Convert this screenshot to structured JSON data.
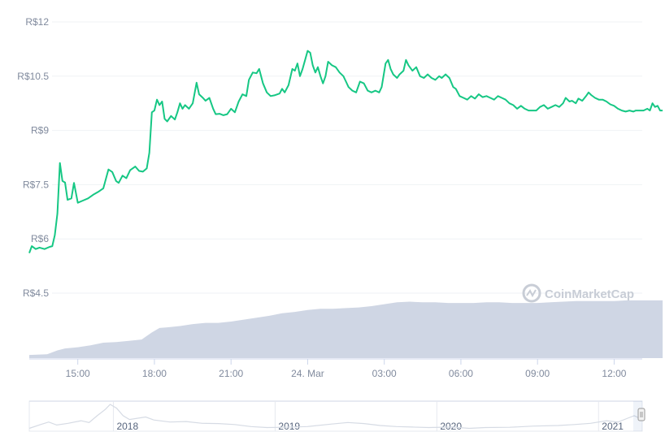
{
  "chart_data": {
    "type": "line",
    "currency_prefix": "R$",
    "y_ticks": [
      "R$12",
      "R$10.5",
      "R$9",
      "R$7.5",
      "R$6",
      "R$4.5"
    ],
    "y_tick_values": [
      12,
      10.5,
      9,
      7.5,
      6,
      4.5
    ],
    "ylim": [
      4.5,
      12
    ],
    "x_ticks": [
      "15:00",
      "18:00",
      "21:00",
      "24. Mar",
      "03:00",
      "06:00",
      "09:00",
      "12:00"
    ],
    "x_tick_hours": [
      15,
      18,
      21,
      24,
      27,
      30,
      33,
      36
    ],
    "xlim_hours": [
      13.1,
      37.1
    ],
    "grid": true,
    "line_color": "#16c784",
    "volume_color": "#cfd6e4",
    "price_series": [
      [
        13.1,
        5.61
      ],
      [
        13.2,
        5.8
      ],
      [
        13.35,
        5.72
      ],
      [
        13.5,
        5.76
      ],
      [
        13.7,
        5.72
      ],
      [
        13.9,
        5.78
      ],
      [
        14.0,
        5.8
      ],
      [
        14.1,
        6.1
      ],
      [
        14.2,
        6.7
      ],
      [
        14.3,
        8.1
      ],
      [
        14.4,
        7.6
      ],
      [
        14.5,
        7.56
      ],
      [
        14.6,
        7.08
      ],
      [
        14.75,
        7.12
      ],
      [
        14.85,
        7.55
      ],
      [
        15.0,
        7.0
      ],
      [
        15.2,
        7.06
      ],
      [
        15.4,
        7.12
      ],
      [
        15.6,
        7.22
      ],
      [
        15.8,
        7.3
      ],
      [
        16.0,
        7.4
      ],
      [
        16.2,
        7.92
      ],
      [
        16.35,
        7.85
      ],
      [
        16.5,
        7.6
      ],
      [
        16.6,
        7.55
      ],
      [
        16.75,
        7.75
      ],
      [
        16.9,
        7.68
      ],
      [
        17.05,
        7.9
      ],
      [
        17.25,
        8.0
      ],
      [
        17.4,
        7.88
      ],
      [
        17.55,
        7.86
      ],
      [
        17.7,
        7.95
      ],
      [
        17.8,
        8.38
      ],
      [
        17.9,
        9.5
      ],
      [
        18.0,
        9.55
      ],
      [
        18.1,
        9.85
      ],
      [
        18.2,
        9.7
      ],
      [
        18.3,
        9.8
      ],
      [
        18.4,
        9.32
      ],
      [
        18.5,
        9.25
      ],
      [
        18.65,
        9.4
      ],
      [
        18.8,
        9.3
      ],
      [
        18.9,
        9.5
      ],
      [
        19.0,
        9.75
      ],
      [
        19.1,
        9.6
      ],
      [
        19.2,
        9.7
      ],
      [
        19.35,
        9.6
      ],
      [
        19.5,
        9.75
      ],
      [
        19.65,
        10.32
      ],
      [
        19.75,
        10.0
      ],
      [
        19.9,
        9.9
      ],
      [
        20.0,
        9.82
      ],
      [
        20.15,
        9.9
      ],
      [
        20.3,
        9.6
      ],
      [
        20.4,
        9.45
      ],
      [
        20.55,
        9.46
      ],
      [
        20.7,
        9.42
      ],
      [
        20.85,
        9.45
      ],
      [
        21.0,
        9.6
      ],
      [
        21.15,
        9.5
      ],
      [
        21.3,
        9.8
      ],
      [
        21.45,
        10.0
      ],
      [
        21.6,
        9.95
      ],
      [
        21.7,
        10.4
      ],
      [
        21.85,
        10.6
      ],
      [
        22.0,
        10.58
      ],
      [
        22.1,
        10.7
      ],
      [
        22.25,
        10.3
      ],
      [
        22.4,
        10.05
      ],
      [
        22.55,
        9.95
      ],
      [
        22.7,
        9.97
      ],
      [
        22.9,
        10.02
      ],
      [
        23.0,
        10.15
      ],
      [
        23.1,
        10.05
      ],
      [
        23.25,
        10.25
      ],
      [
        23.4,
        10.7
      ],
      [
        23.5,
        10.65
      ],
      [
        23.6,
        10.85
      ],
      [
        23.7,
        10.5
      ],
      [
        23.8,
        10.7
      ],
      [
        23.9,
        10.95
      ],
      [
        24.0,
        11.2
      ],
      [
        24.1,
        11.15
      ],
      [
        24.2,
        10.8
      ],
      [
        24.3,
        10.6
      ],
      [
        24.4,
        10.75
      ],
      [
        24.5,
        10.5
      ],
      [
        24.6,
        10.3
      ],
      [
        24.7,
        10.5
      ],
      [
        24.8,
        10.9
      ],
      [
        24.95,
        10.8
      ],
      [
        25.1,
        10.75
      ],
      [
        25.25,
        10.6
      ],
      [
        25.4,
        10.5
      ],
      [
        25.5,
        10.35
      ],
      [
        25.6,
        10.2
      ],
      [
        25.75,
        10.1
      ],
      [
        25.9,
        10.05
      ],
      [
        26.05,
        10.35
      ],
      [
        26.2,
        10.3
      ],
      [
        26.35,
        10.1
      ],
      [
        26.5,
        10.05
      ],
      [
        26.65,
        10.1
      ],
      [
        26.8,
        10.05
      ],
      [
        26.9,
        10.2
      ],
      [
        27.05,
        10.85
      ],
      [
        27.15,
        10.95
      ],
      [
        27.25,
        10.7
      ],
      [
        27.35,
        10.55
      ],
      [
        27.5,
        10.45
      ],
      [
        27.6,
        10.55
      ],
      [
        27.75,
        10.65
      ],
      [
        27.85,
        10.95
      ],
      [
        27.95,
        10.8
      ],
      [
        28.1,
        10.65
      ],
      [
        28.25,
        10.75
      ],
      [
        28.4,
        10.5
      ],
      [
        28.55,
        10.45
      ],
      [
        28.7,
        10.55
      ],
      [
        28.85,
        10.45
      ],
      [
        29.0,
        10.4
      ],
      [
        29.15,
        10.5
      ],
      [
        29.25,
        10.45
      ],
      [
        29.4,
        10.55
      ],
      [
        29.55,
        10.45
      ],
      [
        29.7,
        10.2
      ],
      [
        29.8,
        10.15
      ],
      [
        29.95,
        9.95
      ],
      [
        30.1,
        9.9
      ],
      [
        30.25,
        9.85
      ],
      [
        30.4,
        9.95
      ],
      [
        30.55,
        9.88
      ],
      [
        30.7,
        10.0
      ],
      [
        30.85,
        9.92
      ],
      [
        31.0,
        9.95
      ],
      [
        31.15,
        9.9
      ],
      [
        31.3,
        9.85
      ],
      [
        31.45,
        9.95
      ],
      [
        31.6,
        9.9
      ],
      [
        31.75,
        9.85
      ],
      [
        31.9,
        9.75
      ],
      [
        32.05,
        9.7
      ],
      [
        32.2,
        9.6
      ],
      [
        32.35,
        9.68
      ],
      [
        32.5,
        9.6
      ],
      [
        32.65,
        9.55
      ],
      [
        32.8,
        9.55
      ],
      [
        32.95,
        9.55
      ],
      [
        33.1,
        9.65
      ],
      [
        33.25,
        9.7
      ],
      [
        33.4,
        9.6
      ],
      [
        33.55,
        9.65
      ],
      [
        33.7,
        9.7
      ],
      [
        33.85,
        9.65
      ],
      [
        34.0,
        9.75
      ],
      [
        34.1,
        9.9
      ],
      [
        34.25,
        9.8
      ],
      [
        34.35,
        9.82
      ],
      [
        34.5,
        9.75
      ],
      [
        34.6,
        9.88
      ],
      [
        34.75,
        9.82
      ],
      [
        34.9,
        9.95
      ],
      [
        35.0,
        10.05
      ],
      [
        35.1,
        9.98
      ],
      [
        35.25,
        9.9
      ],
      [
        35.4,
        9.85
      ],
      [
        35.55,
        9.85
      ],
      [
        35.7,
        9.8
      ],
      [
        35.85,
        9.72
      ],
      [
        36.0,
        9.68
      ],
      [
        36.15,
        9.6
      ],
      [
        36.3,
        9.55
      ],
      [
        36.45,
        9.52
      ],
      [
        36.6,
        9.55
      ],
      [
        36.75,
        9.52
      ],
      [
        36.85,
        9.55
      ],
      [
        37.0,
        9.55
      ],
      [
        37.15,
        9.55
      ],
      [
        37.3,
        9.6
      ],
      [
        37.4,
        9.55
      ],
      [
        37.5,
        9.75
      ],
      [
        37.6,
        9.65
      ],
      [
        37.7,
        9.68
      ],
      [
        37.8,
        9.55
      ],
      [
        37.9,
        9.55
      ]
    ],
    "volume_series": [
      [
        13.1,
        0.05
      ],
      [
        13.8,
        0.06
      ],
      [
        14.2,
        0.12
      ],
      [
        14.5,
        0.15
      ],
      [
        15.0,
        0.17
      ],
      [
        15.5,
        0.2
      ],
      [
        16.0,
        0.24
      ],
      [
        16.5,
        0.25
      ],
      [
        17.0,
        0.27
      ],
      [
        17.5,
        0.29
      ],
      [
        17.9,
        0.4
      ],
      [
        18.2,
        0.47
      ],
      [
        18.5,
        0.48
      ],
      [
        19.0,
        0.5
      ],
      [
        19.5,
        0.53
      ],
      [
        20.0,
        0.55
      ],
      [
        20.5,
        0.55
      ],
      [
        21.0,
        0.57
      ],
      [
        21.5,
        0.6
      ],
      [
        22.0,
        0.63
      ],
      [
        22.5,
        0.66
      ],
      [
        23.0,
        0.7
      ],
      [
        23.5,
        0.72
      ],
      [
        24.0,
        0.75
      ],
      [
        24.5,
        0.77
      ],
      [
        25.0,
        0.77
      ],
      [
        25.5,
        0.78
      ],
      [
        26.0,
        0.79
      ],
      [
        26.5,
        0.81
      ],
      [
        27.0,
        0.84
      ],
      [
        27.5,
        0.87
      ],
      [
        28.0,
        0.88
      ],
      [
        28.5,
        0.87
      ],
      [
        29.0,
        0.87
      ],
      [
        29.5,
        0.86
      ],
      [
        30.0,
        0.86
      ],
      [
        30.5,
        0.86
      ],
      [
        31.0,
        0.87
      ],
      [
        31.5,
        0.87
      ],
      [
        32.0,
        0.86
      ],
      [
        32.5,
        0.86
      ],
      [
        33.0,
        0.86
      ],
      [
        33.5,
        0.87
      ],
      [
        34.0,
        0.88
      ],
      [
        34.5,
        0.89
      ],
      [
        35.0,
        0.89
      ],
      [
        35.5,
        0.89
      ],
      [
        36.0,
        0.89
      ],
      [
        36.5,
        0.9
      ],
      [
        37.0,
        0.9
      ],
      [
        37.9,
        0.9
      ]
    ],
    "navigator": {
      "x_labels": [
        "2018",
        "2019",
        "2020",
        "2021"
      ],
      "x_label_years": [
        2018,
        2019,
        2020,
        2021
      ],
      "xlim_years": [
        2017.48,
        2021.27
      ],
      "series": [
        [
          2017.48,
          0.05
        ],
        [
          2017.55,
          0.2
        ],
        [
          2017.6,
          0.3
        ],
        [
          2017.65,
          0.18
        ],
        [
          2017.72,
          0.25
        ],
        [
          2017.8,
          0.35
        ],
        [
          2017.85,
          0.28
        ],
        [
          2017.9,
          0.55
        ],
        [
          2017.95,
          0.8
        ],
        [
          2017.98,
          1.0
        ],
        [
          2018.02,
          0.85
        ],
        [
          2018.06,
          0.55
        ],
        [
          2018.1,
          0.4
        ],
        [
          2018.2,
          0.5
        ],
        [
          2018.25,
          0.38
        ],
        [
          2018.35,
          0.3
        ],
        [
          2018.45,
          0.32
        ],
        [
          2018.55,
          0.25
        ],
        [
          2018.65,
          0.24
        ],
        [
          2018.75,
          0.2
        ],
        [
          2018.85,
          0.12
        ],
        [
          2018.95,
          0.08
        ],
        [
          2019.05,
          0.09
        ],
        [
          2019.2,
          0.12
        ],
        [
          2019.35,
          0.22
        ],
        [
          2019.45,
          0.28
        ],
        [
          2019.55,
          0.24
        ],
        [
          2019.65,
          0.16
        ],
        [
          2019.75,
          0.12
        ],
        [
          2019.85,
          0.1
        ],
        [
          2019.95,
          0.08
        ],
        [
          2020.1,
          0.1
        ],
        [
          2020.2,
          0.05
        ],
        [
          2020.3,
          0.08
        ],
        [
          2020.45,
          0.09
        ],
        [
          2020.6,
          0.14
        ],
        [
          2020.75,
          0.16
        ],
        [
          2020.85,
          0.2
        ],
        [
          2020.95,
          0.25
        ],
        [
          2021.05,
          0.35
        ],
        [
          2021.12,
          0.3
        ],
        [
          2021.18,
          0.45
        ],
        [
          2021.22,
          0.55
        ],
        [
          2021.27,
          0.4
        ]
      ]
    }
  },
  "watermark": "CoinMarketCap"
}
